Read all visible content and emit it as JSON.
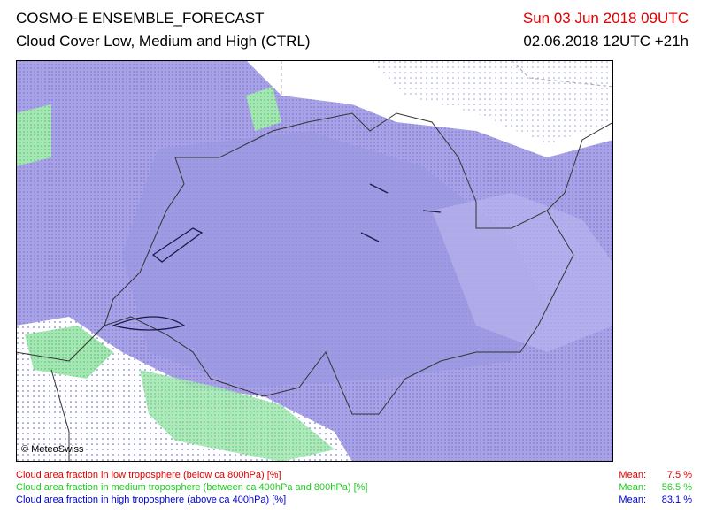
{
  "header": {
    "title": "COSMO-E ENSEMBLE_FORECAST",
    "subtitle": "Cloud Cover Low, Medium and High (CTRL)",
    "valid_time": "Sun 03 Jun 2018 09UTC",
    "run": "02.06.2018 12UTC +21h"
  },
  "map": {
    "copyright": "© MeteoSwiss"
  },
  "legend": [
    {
      "label": "Cloud area fraction in low troposphere (below ca 800hPa) [%]",
      "mean_label": "Mean:",
      "mean": "7.5 %"
    },
    {
      "label": "Cloud area fraction in medium troposphere (between ca 400hPa and 800hPa) [%]",
      "mean_label": "Mean:",
      "mean": "56.5 %"
    },
    {
      "label": "Cloud area fraction in high troposphere (above ca 400hPa) [%]",
      "mean_label": "Mean:",
      "mean": "83.1 %"
    }
  ]
}
